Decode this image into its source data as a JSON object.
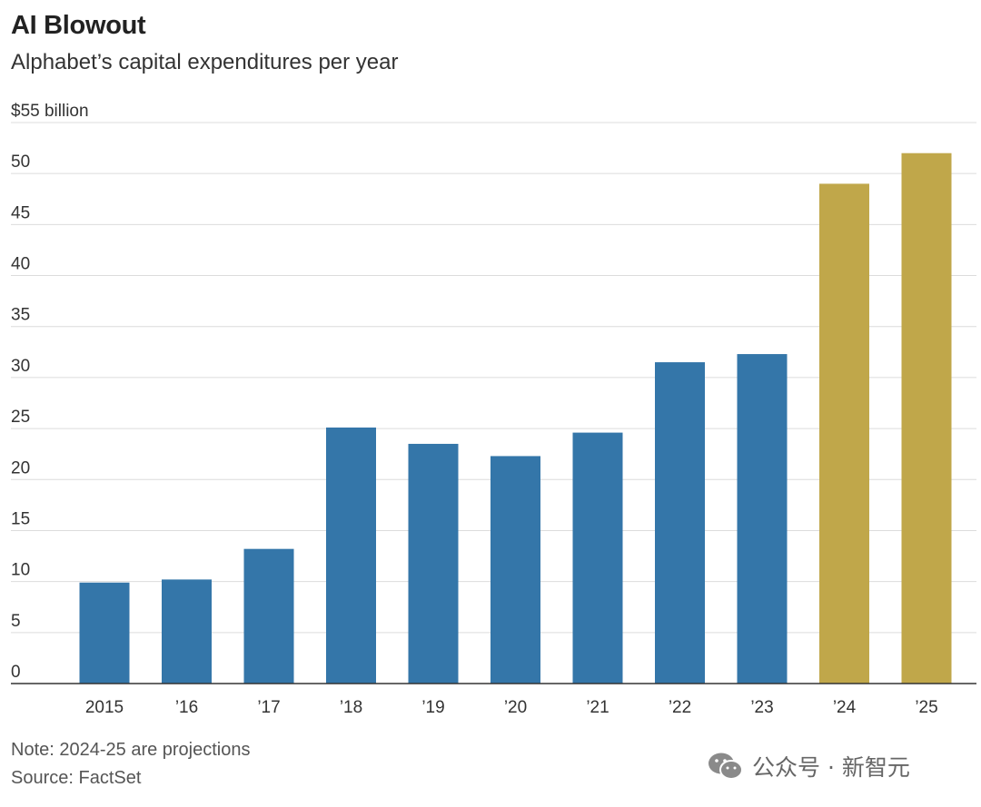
{
  "header": {
    "title": "AI Blowout",
    "subtitle": "Alphabet’s capital expenditures per year"
  },
  "footer": {
    "note": "Note: 2024-25 are projections",
    "source": "Source: FactSet"
  },
  "watermark": {
    "text": "公众号 · 新智元",
    "icon": "wechat-icon"
  },
  "colors": {
    "actual": "#3476a9",
    "projection": "#c0a74a",
    "grid": "#dcdcdc",
    "axis": "#333333"
  },
  "chart_data": {
    "type": "bar",
    "categories": [
      "2015",
      "’16",
      "’17",
      "’18",
      "’19",
      "’20",
      "’21",
      "’22",
      "’23",
      "’24",
      "’25"
    ],
    "values": [
      9.9,
      10.2,
      13.2,
      25.1,
      23.5,
      22.3,
      24.6,
      31.5,
      32.3,
      49.0,
      52.0
    ],
    "projection": [
      false,
      false,
      false,
      false,
      false,
      false,
      false,
      false,
      false,
      true,
      true
    ],
    "ylim": [
      0,
      55
    ],
    "yticks": [
      {
        "value": 55,
        "label": "$55 billion"
      },
      {
        "value": 50,
        "label": "50"
      },
      {
        "value": 45,
        "label": "45"
      },
      {
        "value": 40,
        "label": "40"
      },
      {
        "value": 35,
        "label": "35"
      },
      {
        "value": 30,
        "label": "30"
      },
      {
        "value": 25,
        "label": "25"
      },
      {
        "value": 20,
        "label": "20"
      },
      {
        "value": 15,
        "label": "15"
      },
      {
        "value": 10,
        "label": "10"
      },
      {
        "value": 5,
        "label": "5"
      },
      {
        "value": 0,
        "label": "0"
      }
    ],
    "grid": true
  }
}
